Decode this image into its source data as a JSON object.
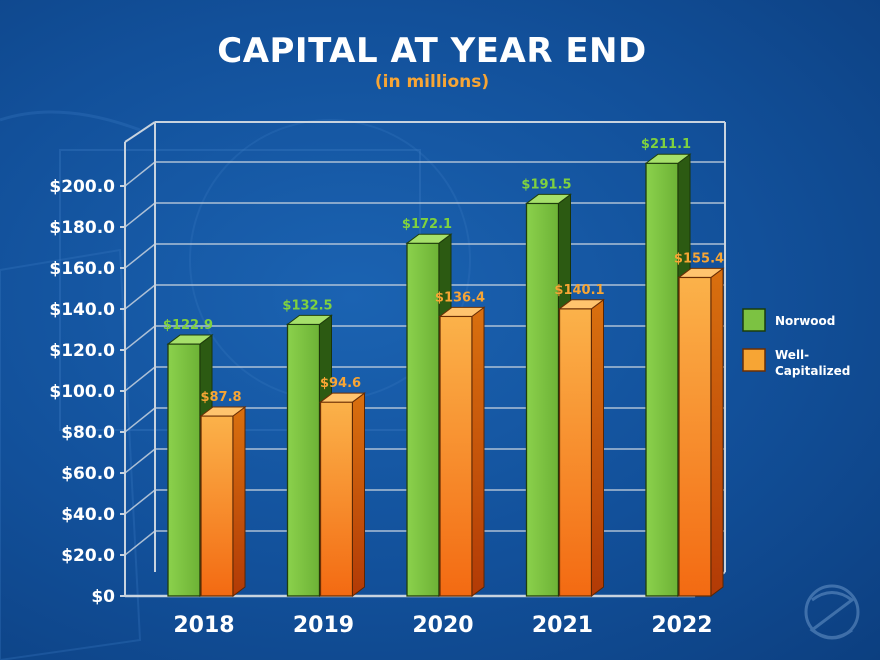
{
  "chart_data": {
    "type": "bar",
    "title": "CAPITAL AT YEAR END",
    "subtitle": "(in millions)",
    "categories": [
      "2018",
      "2019",
      "2020",
      "2021",
      "2022"
    ],
    "series": [
      {
        "name": "Norwood",
        "values": [
          122.9,
          132.5,
          172.1,
          191.5,
          211.1
        ],
        "labels": [
          "$122.9",
          "$132.5",
          "$172.1",
          "$191.5",
          "$211.1"
        ],
        "color": "#7cc242"
      },
      {
        "name": "Well-Capitalized",
        "legend_lines": [
          "Well-",
          "Capitalized"
        ],
        "values": [
          87.8,
          94.6,
          136.4,
          140.1,
          155.4
        ],
        "labels": [
          "$87.8",
          "$94.6",
          "$136.4",
          "$140.1",
          "$155.4"
        ],
        "color": "#f7a534"
      }
    ],
    "y_ticks": [
      0,
      20,
      40,
      60,
      80,
      100,
      120,
      140,
      160,
      180,
      200
    ],
    "y_tick_labels": [
      "$0",
      "$20.0",
      "$40.0",
      "$60.0",
      "$80.0",
      "$100.0",
      "$120.0",
      "$140.0",
      "$160.0",
      "$180.0",
      "$200.0"
    ],
    "ylim": [
      0,
      220
    ],
    "grid": true,
    "legend_position": "right"
  },
  "colors": {
    "background": "#12509a",
    "series_a": "#7cc242",
    "series_b": "#f7a534",
    "grid": "#c8d3df",
    "text": "#ffffff"
  }
}
